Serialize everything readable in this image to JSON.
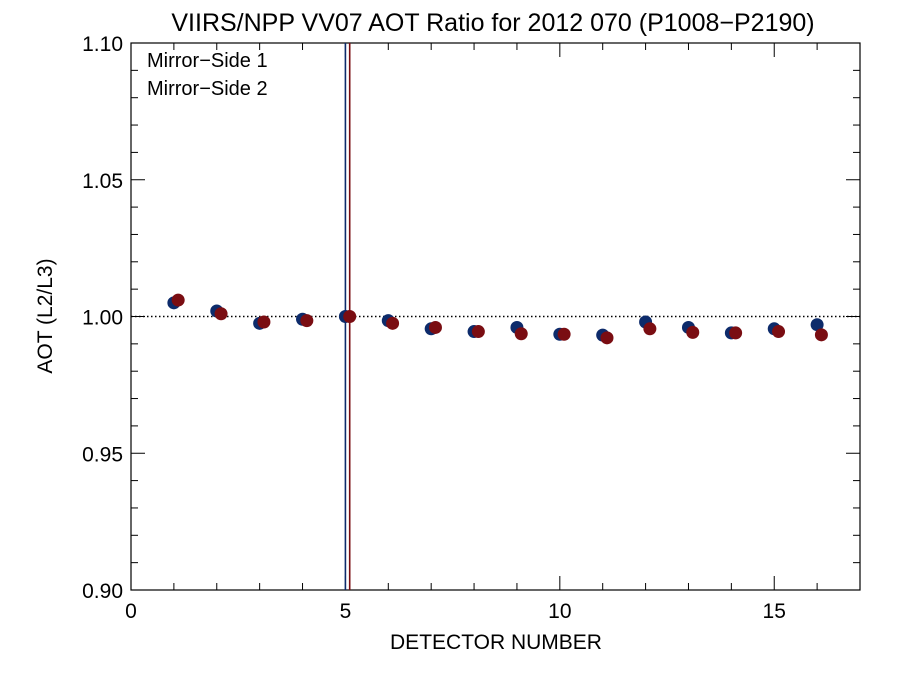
{
  "chart_data": {
    "type": "scatter",
    "title": "VIIRS/NPP VV07 AOT Ratio for 2012 070 (P1008−P2190)",
    "xlabel": "DETECTOR NUMBER",
    "ylabel": "AOT (L2/L3)",
    "xlim": [
      0,
      17
    ],
    "ylim": [
      0.9,
      1.1
    ],
    "x_ticks": [
      0,
      5,
      10,
      15
    ],
    "x_tick_labels": [
      "0",
      "5",
      "10",
      "15"
    ],
    "y_ticks": [
      0.9,
      0.95,
      1.0,
      1.05,
      1.1
    ],
    "y_tick_labels": [
      "0.90",
      "0.95",
      "1.00",
      "1.05",
      "1.10"
    ],
    "reference_line": {
      "y": 1.0,
      "style": "dotted"
    },
    "vertical_lines": [
      {
        "x": 5.0,
        "color": "#0d2b6b"
      },
      {
        "x": 5.1,
        "color": "#7a0d12"
      }
    ],
    "legend_placement": "top-left",
    "series": [
      {
        "name": "Mirror−Side 1",
        "color": "#0d2b6b",
        "x": [
          1,
          2,
          3,
          4,
          5,
          6,
          7,
          8,
          9,
          10,
          11,
          12,
          13,
          14,
          15,
          16
        ],
        "y": [
          1.005,
          1.002,
          0.9975,
          0.999,
          1.0,
          0.9985,
          0.9955,
          0.9945,
          0.996,
          0.9935,
          0.9932,
          0.998,
          0.996,
          0.994,
          0.9955,
          0.997
        ]
      },
      {
        "name": "Mirror−Side 2",
        "color": "#7a0d12",
        "x": [
          1.1,
          2.1,
          3.1,
          4.1,
          5.1,
          6.1,
          7.1,
          8.1,
          9.1,
          10.1,
          11.1,
          12.1,
          13.1,
          14.1,
          15.1,
          16.1
        ],
        "y": [
          1.006,
          1.001,
          0.998,
          0.9985,
          1.0,
          0.9975,
          0.996,
          0.9945,
          0.9937,
          0.9935,
          0.9922,
          0.9955,
          0.9942,
          0.994,
          0.9945,
          0.9933
        ]
      }
    ]
  }
}
